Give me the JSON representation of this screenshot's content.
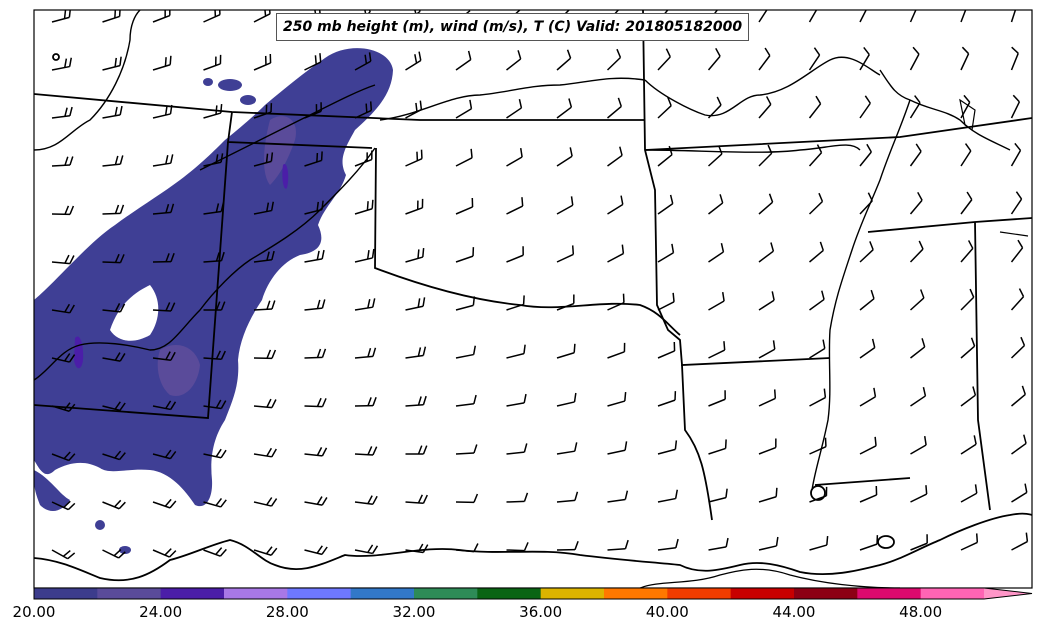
{
  "map": {
    "title": "250 mb height (m), wind (m/s), T (C) Valid: 201805182000",
    "colorbar": {
      "tick_labels": [
        "20.00",
        "24.00",
        "28.00",
        "32.00",
        "36.00",
        "40.00",
        "44.00",
        "48.00"
      ],
      "min": 20,
      "max": 52,
      "extend": "max",
      "colors": [
        "#3c3c8c",
        "#5a4b9a",
        "#4b1ea8",
        "#a878e6",
        "#6e78ff",
        "#3278c8",
        "#2e8b57",
        "#0a6414",
        "#dcb400",
        "#ff7800",
        "#f03c00",
        "#c80000",
        "#8c0014",
        "#dc0a6e",
        "#ff64b4",
        "#ff96c8"
      ]
    },
    "shaded_field_color": "#3f3f95"
  }
}
